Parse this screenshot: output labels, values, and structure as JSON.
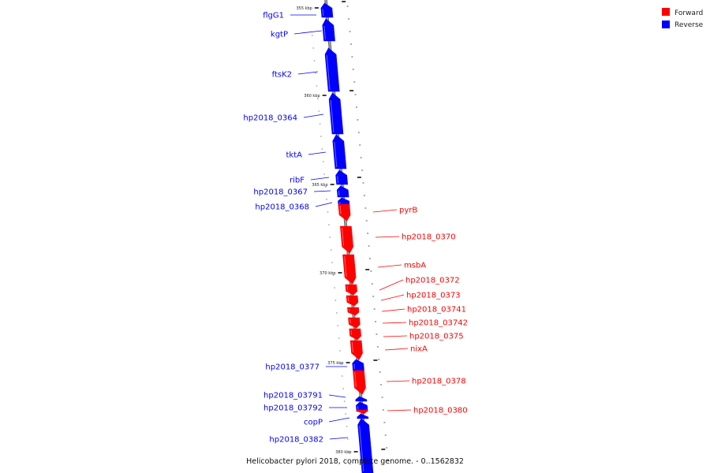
{
  "legend": [
    {
      "label": "Forward",
      "color": "#ff0000"
    },
    {
      "label": "Reverse",
      "color": "#0000ff"
    }
  ],
  "caption": "Helicobacter pylori 2018, complete genome. - 0..1562832",
  "axis": {
    "unit": "kbp",
    "major_ticks": [
      355,
      360,
      365,
      370,
      375,
      380
    ]
  },
  "colors": {
    "forward": "#ff0000",
    "reverse": "#0000ff",
    "backbone": "#808080"
  },
  "genes": [
    {
      "name": "flgG1",
      "strand": "reverse"
    },
    {
      "name": "kgtP",
      "strand": "reverse"
    },
    {
      "name": "ftsK2",
      "strand": "reverse"
    },
    {
      "name": "hp2018_0364",
      "strand": "reverse"
    },
    {
      "name": "tktA",
      "strand": "reverse"
    },
    {
      "name": "ribF",
      "strand": "reverse"
    },
    {
      "name": "hp2018_0367",
      "strand": "reverse"
    },
    {
      "name": "hp2018_0368",
      "strand": "reverse"
    },
    {
      "name": "pyrB",
      "strand": "forward"
    },
    {
      "name": "hp2018_0370",
      "strand": "forward"
    },
    {
      "name": "msbA",
      "strand": "forward"
    },
    {
      "name": "hp2018_0372",
      "strand": "forward"
    },
    {
      "name": "hp2018_0373",
      "strand": "forward"
    },
    {
      "name": "hp2018_03741",
      "strand": "forward"
    },
    {
      "name": "hp2018_03742",
      "strand": "forward"
    },
    {
      "name": "hp2018_0375",
      "strand": "forward"
    },
    {
      "name": "nixA",
      "strand": "forward"
    },
    {
      "name": "hp2018_0377",
      "strand": "reverse"
    },
    {
      "name": "hp2018_0378",
      "strand": "forward"
    },
    {
      "name": "hp2018_03791",
      "strand": "reverse"
    },
    {
      "name": "hp2018_03792",
      "strand": "reverse"
    },
    {
      "name": "hp2018_0380",
      "strand": "forward"
    },
    {
      "name": "copP",
      "strand": "reverse"
    },
    {
      "name": "hp2018_0382",
      "strand": "reverse"
    }
  ]
}
